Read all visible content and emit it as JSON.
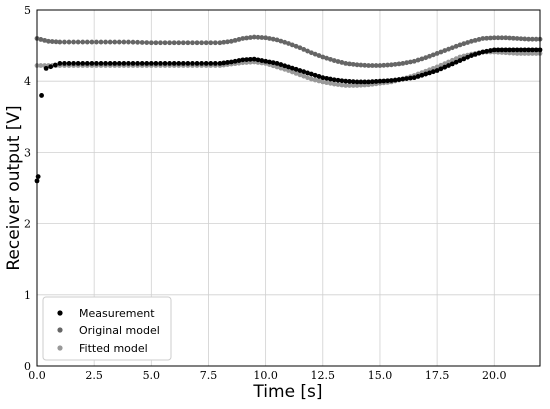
{
  "chart_data": {
    "type": "scatter",
    "xlabel": "Time [s]",
    "ylabel": "Receiver output [V]",
    "xlim": [
      0,
      22
    ],
    "ylim": [
      0,
      5
    ],
    "x_ticks": [
      "0.0",
      "2.5",
      "5.0",
      "7.5",
      "10.0",
      "12.5",
      "15.0",
      "17.5",
      "20.0"
    ],
    "y_ticks": [
      "0",
      "1",
      "2",
      "3",
      "4",
      "5"
    ],
    "grid": true,
    "legend_position": "lower-left",
    "series": [
      {
        "name": "Measurement",
        "color": "#000000",
        "x": [
          0.0,
          0.05,
          0.2,
          0.4,
          1.0,
          2.0,
          3.0,
          4.0,
          5.0,
          6.0,
          7.0,
          8.0,
          8.5,
          9.0,
          9.5,
          10.0,
          10.5,
          11.0,
          11.5,
          12.0,
          12.5,
          13.0,
          13.5,
          14.0,
          14.5,
          15.0,
          15.5,
          16.0,
          16.5,
          17.0,
          17.5,
          18.0,
          18.5,
          19.0,
          19.5,
          20.0,
          20.5,
          21.0,
          21.5,
          22.0
        ],
        "y": [
          2.6,
          2.66,
          3.8,
          4.18,
          4.25,
          4.25,
          4.25,
          4.25,
          4.25,
          4.25,
          4.25,
          4.25,
          4.27,
          4.3,
          4.31,
          4.28,
          4.25,
          4.2,
          4.15,
          4.1,
          4.05,
          4.02,
          4.0,
          3.99,
          3.99,
          4.0,
          4.01,
          4.03,
          4.05,
          4.1,
          4.15,
          4.22,
          4.29,
          4.36,
          4.41,
          4.44,
          4.44,
          4.44,
          4.44,
          4.44
        ]
      },
      {
        "name": "Original model",
        "color": "#666666",
        "x": [
          0.0,
          0.5,
          1.0,
          2.0,
          3.0,
          4.0,
          5.0,
          6.0,
          7.0,
          8.0,
          8.5,
          9.0,
          9.5,
          10.0,
          10.5,
          11.0,
          11.5,
          12.0,
          12.5,
          13.0,
          13.5,
          14.0,
          14.5,
          15.0,
          15.5,
          16.0,
          16.5,
          17.0,
          17.5,
          18.0,
          18.5,
          19.0,
          19.5,
          20.0,
          20.5,
          21.0,
          21.5,
          22.0
        ],
        "y": [
          4.6,
          4.56,
          4.55,
          4.55,
          4.55,
          4.55,
          4.54,
          4.54,
          4.54,
          4.54,
          4.56,
          4.6,
          4.62,
          4.61,
          4.58,
          4.53,
          4.47,
          4.4,
          4.34,
          4.29,
          4.25,
          4.23,
          4.22,
          4.22,
          4.23,
          4.25,
          4.28,
          4.33,
          4.39,
          4.45,
          4.51,
          4.56,
          4.6,
          4.61,
          4.61,
          4.6,
          4.59,
          4.59
        ]
      },
      {
        "name": "Fitted model",
        "color": "#999999",
        "x": [
          0.0,
          0.5,
          1.0,
          2.0,
          3.0,
          4.0,
          5.0,
          6.0,
          7.0,
          8.0,
          8.5,
          9.0,
          9.5,
          10.0,
          10.5,
          11.0,
          11.5,
          12.0,
          12.5,
          13.0,
          13.5,
          14.0,
          14.5,
          15.0,
          15.5,
          16.0,
          16.5,
          17.0,
          17.5,
          18.0,
          18.5,
          19.0,
          19.5,
          20.0,
          20.5,
          21.0,
          21.5,
          22.0
        ],
        "y": [
          4.22,
          4.22,
          4.22,
          4.22,
          4.22,
          4.22,
          4.22,
          4.22,
          4.22,
          4.22,
          4.24,
          4.26,
          4.27,
          4.25,
          4.2,
          4.15,
          4.09,
          4.03,
          3.99,
          3.96,
          3.94,
          3.94,
          3.95,
          3.97,
          3.99,
          4.03,
          4.08,
          4.14,
          4.2,
          4.27,
          4.34,
          4.38,
          4.41,
          4.41,
          4.4,
          4.39,
          4.39,
          4.39
        ]
      }
    ]
  }
}
